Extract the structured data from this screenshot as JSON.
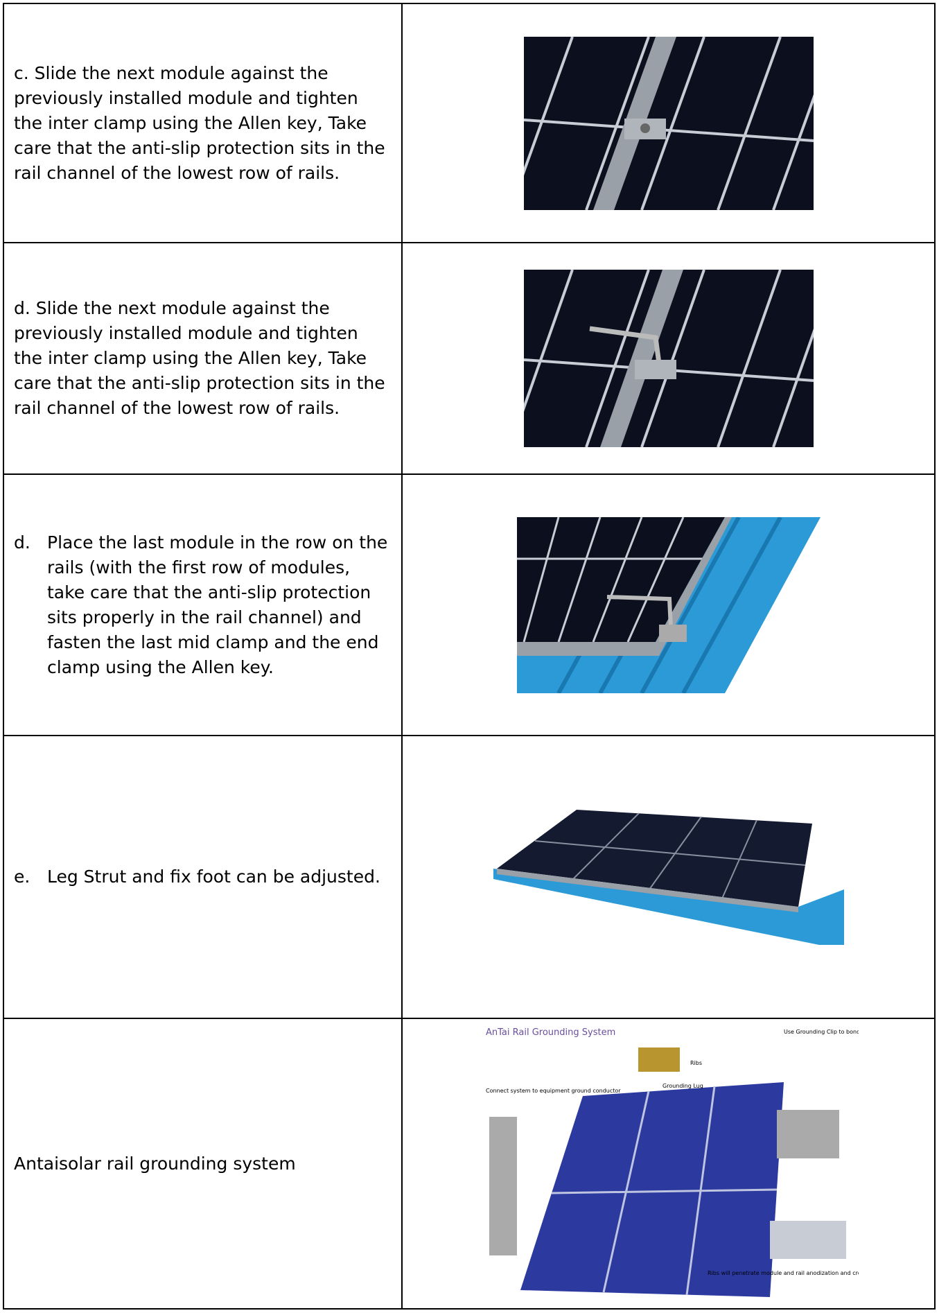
{
  "rows": [
    {
      "text": "c. Slide the next module against the previously installed module and tighten the inter clamp using the Allen key, Take care that the anti-slip protection sits in the rail channel of the lowest row of rails."
    },
    {
      "text": "d.  Slide the next module against the previously installed module and tighten the inter clamp using the Allen key, Take care that the anti-slip protection sits in the rail channel of the lowest row of rails."
    },
    {
      "marker": "d.",
      "text": "Place the last module in the row on the rails (with the first row of modules, take care that the anti-slip protection sits properly in the rail channel) and fasten the last mid clamp and the end clamp using the Allen key."
    },
    {
      "marker": "e.",
      "text": "Leg Strut and fix foot can be adjusted."
    },
    {
      "text": "Antaisolar rail grounding system",
      "figure": {
        "title": "AnTai Rail Grounding System",
        "labels": [
          "Use Grounding Clip to bond solar modules to AT rails",
          "Ribs",
          "Grounding Lug",
          "Connect system to equipment ground conductor",
          "Ribs will penetrate module and rail anodization and create grounding path through rail"
        ]
      }
    }
  ]
}
